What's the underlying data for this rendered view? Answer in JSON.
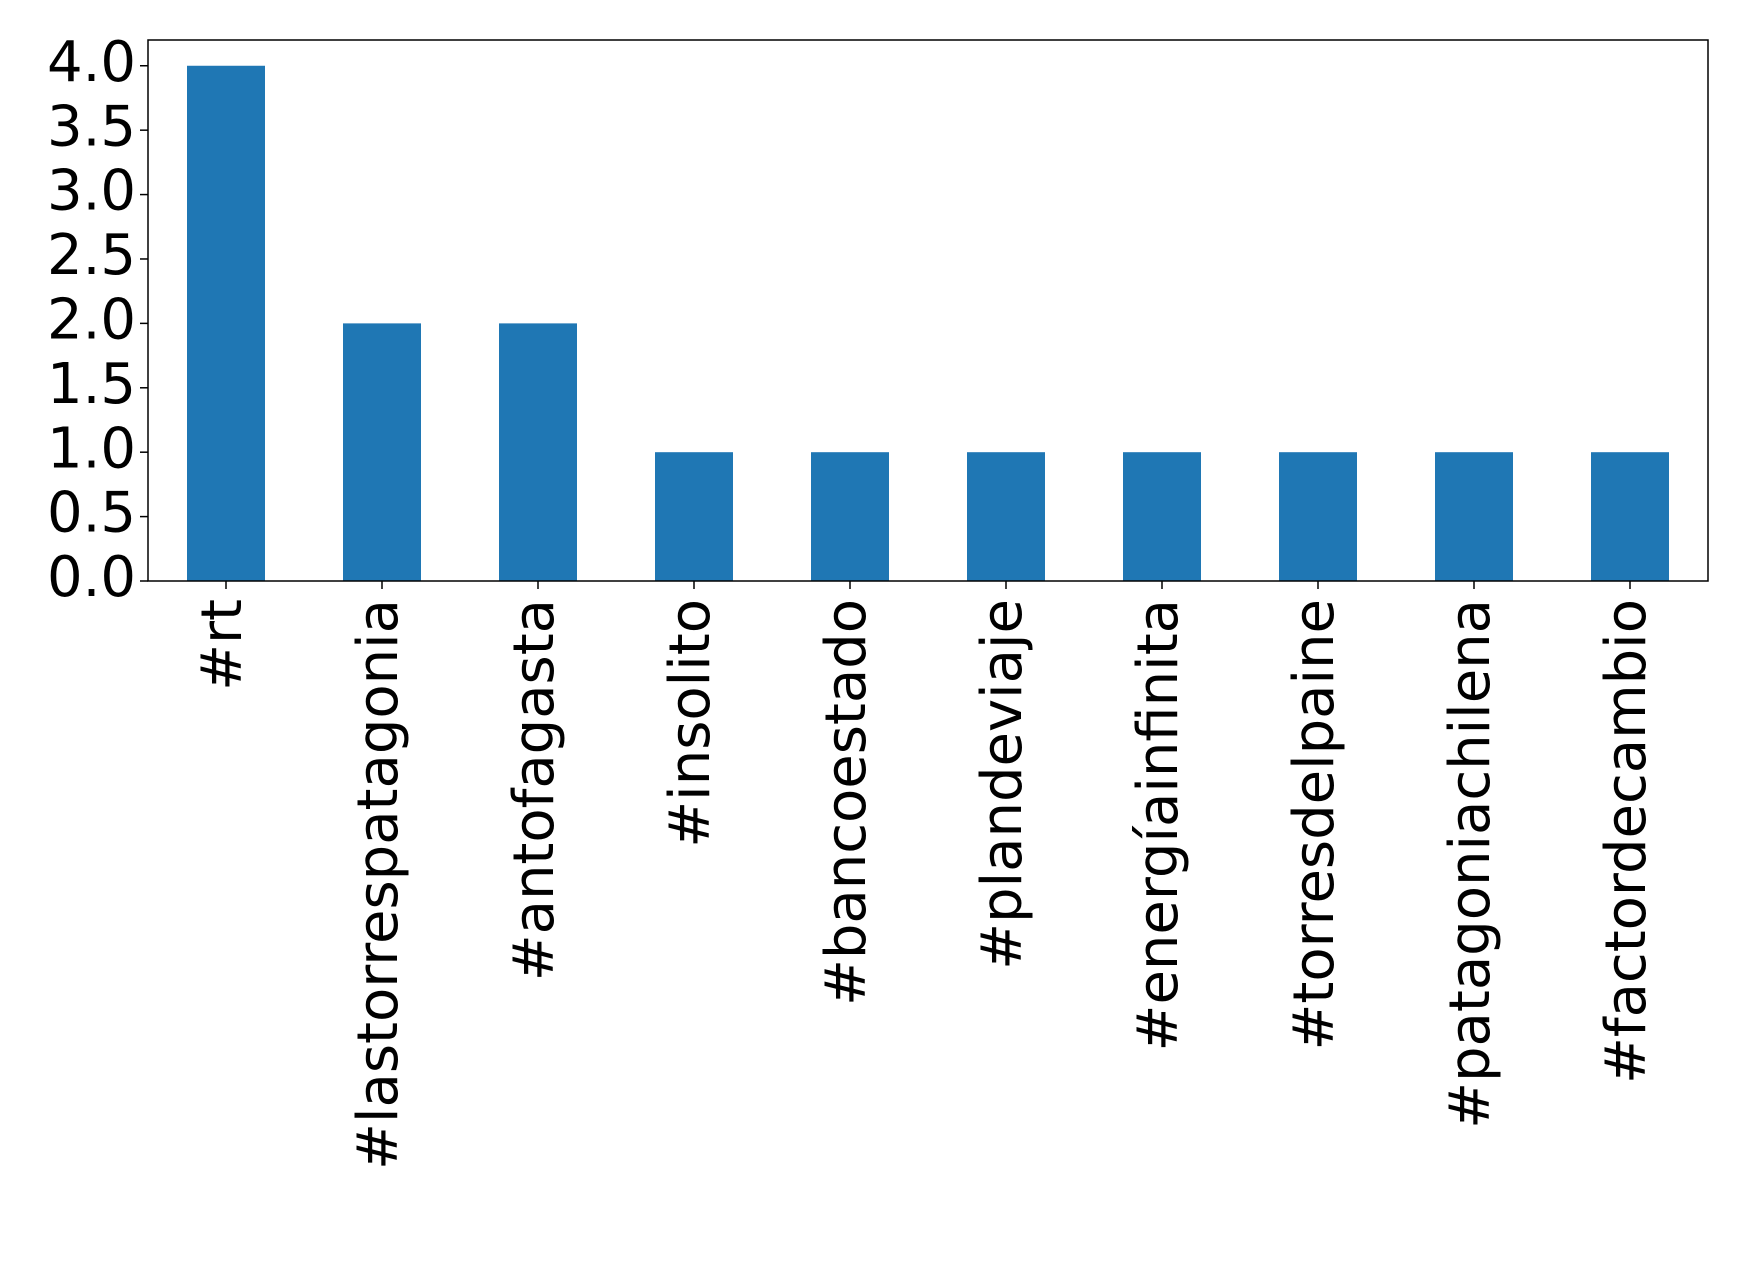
{
  "chart_data": {
    "type": "bar",
    "categories": [
      "#rt",
      "#lastorrespatagonia",
      "#antofagasta",
      "#insolito",
      "#bancoestado",
      "#plandeviaje",
      "#energíainfinita",
      "#torresdelpaine",
      "#patagoniachilena",
      "#factordecambio"
    ],
    "values": [
      4,
      2,
      2,
      1,
      1,
      1,
      1,
      1,
      1,
      1
    ],
    "color": "#1f77b4",
    "ylim": [
      0,
      4.2
    ],
    "yticks": [
      {
        "value": 0,
        "label": "0.0"
      },
      {
        "value": 0.5,
        "label": "0.5"
      },
      {
        "value": 1,
        "label": "1.0"
      },
      {
        "value": 1.5,
        "label": "1.5"
      },
      {
        "value": 2,
        "label": "2.0"
      },
      {
        "value": 2.5,
        "label": "2.5"
      },
      {
        "value": 3,
        "label": "3.0"
      },
      {
        "value": 3.5,
        "label": "3.5"
      },
      {
        "value": 4,
        "label": "4.0"
      }
    ],
    "grid": false
  }
}
